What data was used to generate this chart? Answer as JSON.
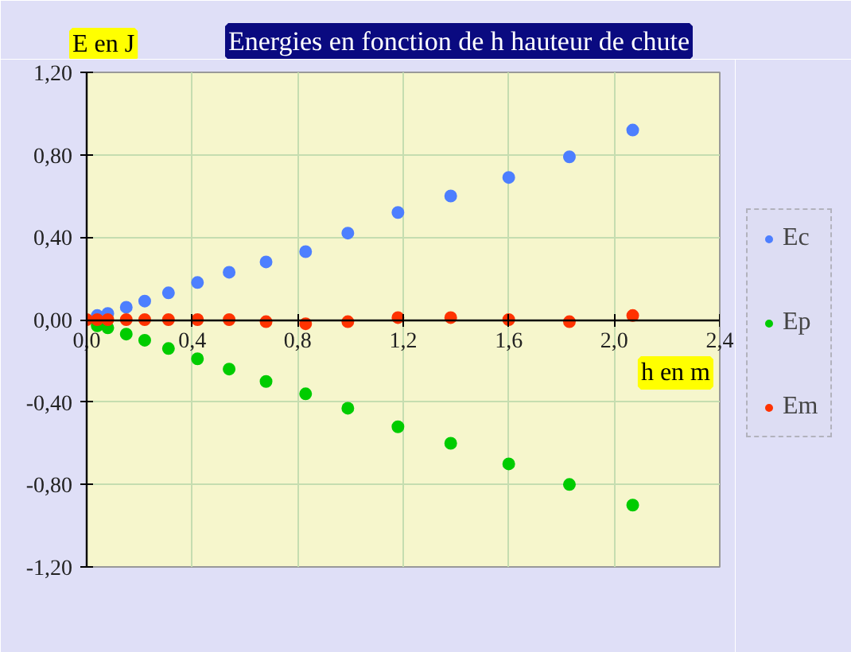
{
  "chart_data": {
    "type": "scatter",
    "title": "Energies en fonction de h hauteur de chute",
    "xlabel": "h en m",
    "ylabel": "E en J",
    "x": [
      0,
      0.04,
      0.08,
      0.15,
      0.22,
      0.31,
      0.42,
      0.54,
      0.68,
      0.83,
      0.99,
      1.18,
      1.38,
      1.6,
      1.83,
      2.07
    ],
    "series": [
      {
        "name": "Ec",
        "color": "#4d7fff",
        "values": [
          null,
          0.02,
          0.03,
          0.06,
          0.09,
          0.13,
          0.18,
          0.23,
          0.28,
          0.33,
          0.42,
          0.52,
          0.6,
          0.69,
          0.79,
          0.92
        ]
      },
      {
        "name": "Ep",
        "color": "#00cc00",
        "values": [
          null,
          -0.03,
          -0.04,
          -0.07,
          -0.1,
          -0.14,
          -0.19,
          -0.24,
          -0.3,
          -0.36,
          -0.43,
          -0.52,
          -0.6,
          -0.7,
          -0.8,
          -0.9
        ]
      },
      {
        "name": "Em",
        "color": "#ff3300",
        "values": [
          0,
          0,
          0,
          0,
          0,
          0,
          0,
          0,
          -0.01,
          -0.02,
          -0.01,
          0.01,
          0.01,
          0,
          -0.01,
          0.02
        ]
      }
    ],
    "xlim": [
      0,
      2.4
    ],
    "ylim": [
      -1.2,
      1.2
    ],
    "xticks": [
      {
        "value": 0,
        "label": "0,0"
      },
      {
        "value": 0.4,
        "label": "0,4"
      },
      {
        "value": 0.8,
        "label": "0,8"
      },
      {
        "value": 1.2,
        "label": "1,2"
      },
      {
        "value": 1.6,
        "label": "1,6"
      },
      {
        "value": 2.0,
        "label": "2,0"
      },
      {
        "value": 2.4,
        "label": "2,4"
      }
    ],
    "yticks": [
      {
        "value": -1.2,
        "label": "-1,20"
      },
      {
        "value": -0.8,
        "label": "-0,80"
      },
      {
        "value": -0.4,
        "label": "-0,40"
      },
      {
        "value": 0,
        "label": "0,00"
      },
      {
        "value": 0.4,
        "label": "0,40"
      },
      {
        "value": 0.8,
        "label": "0,80"
      },
      {
        "value": 1.2,
        "label": "1,20"
      }
    ],
    "grid": true,
    "legend": "right",
    "marker": "circle"
  }
}
